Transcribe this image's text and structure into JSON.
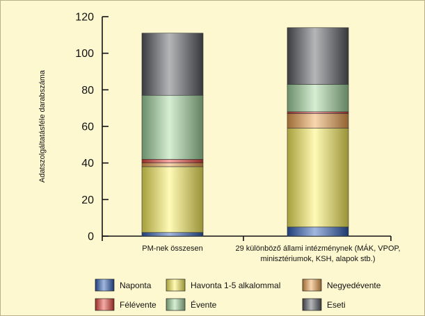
{
  "chart_data": {
    "type": "bar",
    "stacked": true,
    "title": "",
    "xlabel": "",
    "ylabel": "Adatszolgáltatásféle darabszáma",
    "ylim": [
      0,
      120
    ],
    "yticks": [
      0,
      20,
      40,
      60,
      80,
      100,
      120
    ],
    "categories": [
      [
        "PM-nek összesen"
      ],
      [
        "29 különböző állami intézménynek (MÁK, VPOP,",
        "minisztériumok, KSH, alapok stb.)"
      ]
    ],
    "series": [
      {
        "name": "Naponta",
        "color": "#2f5fb8",
        "values": [
          2,
          5
        ]
      },
      {
        "name": "Havonta 1-5 alkalommal",
        "color": "#fff45c",
        "values": [
          36,
          54
        ]
      },
      {
        "name": "Negyedévente",
        "color": "#f0a34e",
        "values": [
          2,
          8
        ]
      },
      {
        "name": "Félévente",
        "color": "#e8443a",
        "values": [
          2,
          1
        ]
      },
      {
        "name": "Évente",
        "color": "#a3d9a0",
        "values": [
          35,
          15
        ]
      },
      {
        "name": "Eseti",
        "color": "#5a5d62",
        "values": [
          34,
          31
        ]
      }
    ],
    "legend_placement": "bottom",
    "grid": false
  }
}
